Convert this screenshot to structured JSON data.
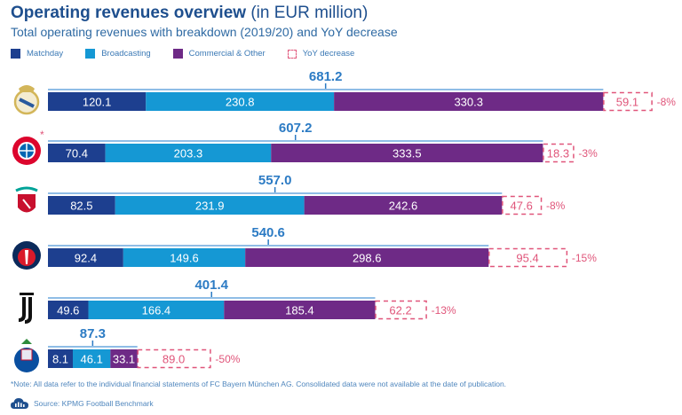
{
  "header": {
    "title_bold": "Operating revenues overview",
    "title_unit": " (in EUR million)",
    "subtitle": "Total operating revenues with breakdown (2019/20) and YoY decrease"
  },
  "legend": [
    {
      "label": "Matchday",
      "color": "#1d3f8f"
    },
    {
      "label": "Broadcasting",
      "color": "#1598d4"
    },
    {
      "label": "Commercial & Other",
      "color": "#6e2a86"
    },
    {
      "label": "YoY decrease",
      "color": "#e0557a",
      "style": "dashed"
    }
  ],
  "chart_data": {
    "type": "bar",
    "orientation": "horizontal",
    "stacked": true,
    "title": "Operating revenues overview (in EUR million)",
    "subtitle": "Total operating revenues with breakdown (2019/20) and YoY decrease",
    "categories": [
      "Real Madrid",
      "FC Bayern München",
      "Liverpool",
      "Paris Saint-Germain",
      "Juventus",
      "FC Porto"
    ],
    "crest_icons": [
      "real-madrid-crest-icon",
      "bayern-crest-icon",
      "liverpool-crest-icon",
      "psg-crest-icon",
      "juventus-crest-icon",
      "porto-crest-icon"
    ],
    "category_marks": [
      "",
      "*",
      "",
      "",
      "",
      ""
    ],
    "series": [
      {
        "name": "Matchday",
        "color": "#1d3f8f",
        "values": [
          120.1,
          70.4,
          82.5,
          92.4,
          49.6,
          8.1
        ]
      },
      {
        "name": "Broadcasting",
        "color": "#1598d4",
        "values": [
          230.8,
          203.3,
          231.9,
          149.6,
          166.4,
          46.1
        ]
      },
      {
        "name": "Commercial & Other",
        "color": "#6e2a86",
        "values": [
          330.3,
          333.5,
          242.6,
          298.6,
          185.4,
          33.1
        ]
      }
    ],
    "totals": [
      "681.2",
      "607.2",
      "557.0",
      "540.6",
      "401.4",
      "87.3"
    ],
    "yoy_decrease": {
      "name": "YoY decrease",
      "color": "#e0557a",
      "values": [
        59.1,
        18.3,
        47.6,
        95.4,
        62.2,
        89.0
      ],
      "percent": [
        "-8%",
        "-3%",
        "-8%",
        "-15%",
        "-13%",
        "-50%"
      ]
    },
    "xlabel": "",
    "ylabel": "",
    "grid": false,
    "legend_position": "top-left"
  },
  "footer": {
    "note": "*Note: All data refer to the individual financial statements of FC Bayern München AG. Consolidated data were not available at the date of publication.",
    "source": "Source: KPMG Football Benchmark"
  }
}
